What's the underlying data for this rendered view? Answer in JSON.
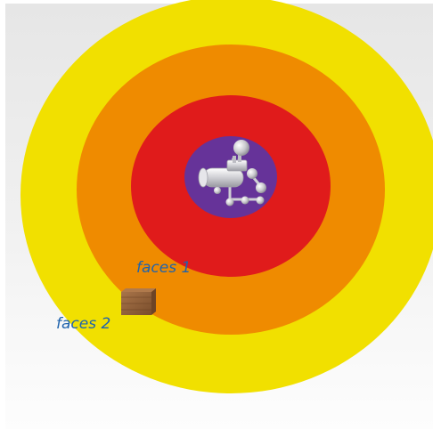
{
  "colors": {
    "background": "#eeeeee",
    "zone_outer": "#f1e000",
    "zone_middle": "#ef8b00",
    "zone_inner": "#e01b1b",
    "core": "#663399",
    "label_text": "#1f63ad",
    "object": "#8a5a36"
  },
  "zones": [
    {
      "name": "outer",
      "color": "#f1e000"
    },
    {
      "name": "middle",
      "color": "#ef8b00"
    },
    {
      "name": "inner",
      "color": "#e01b1b"
    },
    {
      "name": "core",
      "color": "#663399"
    }
  ],
  "labels": {
    "faces_1": "faces 1",
    "faces_2": "faces 2"
  },
  "icons": {
    "machine": "industrial-machine-icon",
    "box": "wooden-box-icon"
  }
}
